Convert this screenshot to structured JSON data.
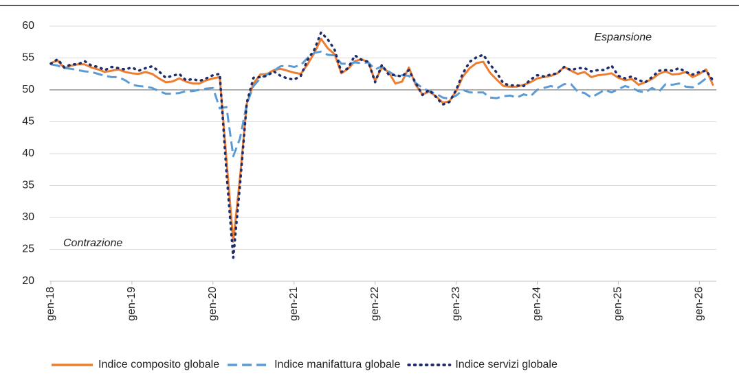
{
  "chart_data": {
    "type": "line",
    "annotations": [
      "Espansione",
      "Contrazione"
    ],
    "categories": [
      "gen-18",
      null,
      null,
      null,
      null,
      null,
      null,
      null,
      null,
      null,
      null,
      null,
      "gen-19",
      null,
      null,
      null,
      null,
      null,
      null,
      null,
      null,
      null,
      null,
      null,
      "gen-20",
      null,
      null,
      null,
      null,
      null,
      null,
      null,
      null,
      null,
      null,
      null,
      "gen-21",
      null,
      null,
      null,
      null,
      null,
      null,
      null,
      null,
      null,
      null,
      null,
      "gen-22",
      null,
      null,
      null,
      null,
      null,
      null,
      null,
      null,
      null,
      null,
      null,
      "gen-23",
      null,
      null,
      null,
      null,
      null,
      null,
      null,
      null,
      null,
      null,
      null,
      "gen-24",
      null,
      null,
      null,
      null,
      null,
      null,
      null,
      null,
      null,
      null,
      null,
      "gen-25",
      null,
      null,
      null,
      null,
      null,
      null,
      null,
      null,
      null,
      null,
      null,
      "gen-26",
      null,
      null
    ],
    "series": [
      {
        "name": "Indice composito globale",
        "color": "#ed7d31",
        "style": "solid",
        "values": [
          54.2,
          54.6,
          53.4,
          53.8,
          54.0,
          54.0,
          53.5,
          53.2,
          52.8,
          53.0,
          53.2,
          52.8,
          52.6,
          52.5,
          52.8,
          52.5,
          51.8,
          51.2,
          51.3,
          51.8,
          51.3,
          51.0,
          51.0,
          51.5,
          51.8,
          52.0,
          39.0,
          26.2,
          36.3,
          47.8,
          51.0,
          52.4,
          52.5,
          53.1,
          53.3,
          53.0,
          52.7,
          52.5,
          54.0,
          55.8,
          58.0,
          56.5,
          55.6,
          52.6,
          53.3,
          54.5,
          54.8,
          54.3,
          51.4,
          53.5,
          52.8,
          51.0,
          51.3,
          53.5,
          50.8,
          49.3,
          49.7,
          49.0,
          48.0,
          48.2,
          49.8,
          52.1,
          53.4,
          54.2,
          54.4,
          52.7,
          51.6,
          50.6,
          50.5,
          50.5,
          50.8,
          51.2,
          51.8,
          52.0,
          52.2,
          52.6,
          53.6,
          53.0,
          52.5,
          52.8,
          52.0,
          52.3,
          52.4,
          52.6,
          51.9,
          51.5,
          51.7,
          50.8,
          51.2,
          51.7,
          52.5,
          52.9,
          52.4,
          52.5,
          52.8,
          52.0,
          52.5,
          53.2,
          50.8
        ]
      },
      {
        "name": "Indice manifattura globale",
        "color": "#5b9bd5",
        "style": "dashed",
        "values": [
          54.0,
          53.8,
          53.4,
          53.3,
          53.1,
          52.9,
          52.8,
          52.5,
          52.2,
          52.0,
          52.0,
          51.5,
          50.8,
          50.6,
          50.5,
          50.3,
          49.8,
          49.4,
          49.4,
          49.5,
          49.8,
          49.8,
          50.0,
          50.2,
          50.3,
          47.1,
          47.3,
          39.6,
          42.4,
          47.8,
          50.6,
          51.8,
          52.4,
          53.0,
          53.7,
          53.8,
          53.6,
          53.9,
          55.0,
          55.8,
          56.0,
          55.5,
          55.4,
          54.1,
          54.1,
          54.3,
          54.2,
          54.3,
          53.2,
          53.7,
          52.9,
          52.2,
          52.3,
          52.2,
          51.1,
          50.3,
          49.8,
          49.4,
          48.8,
          48.6,
          49.1,
          50.0,
          49.6,
          49.6,
          49.6,
          48.8,
          48.7,
          49.0,
          49.1,
          48.8,
          49.3,
          49.0,
          50.0,
          50.3,
          50.6,
          50.3,
          50.9,
          50.9,
          49.7,
          49.5,
          48.8,
          49.4,
          50.0,
          49.6,
          50.1,
          50.6,
          50.3,
          49.8,
          49.6,
          50.3,
          49.7,
          50.9,
          50.8,
          51.0,
          50.5,
          50.4,
          51.0,
          51.8,
          51.6
        ]
      },
      {
        "name": "Indice servizi globale",
        "color": "#1f2d6b",
        "style": "dotted",
        "values": [
          54.1,
          54.8,
          53.5,
          54.0,
          54.0,
          54.5,
          53.8,
          53.6,
          53.1,
          53.6,
          53.4,
          53.2,
          53.5,
          53.0,
          53.4,
          53.7,
          52.9,
          51.9,
          52.2,
          52.5,
          51.5,
          51.7,
          51.4,
          51.8,
          52.3,
          52.5,
          37.0,
          23.7,
          35.1,
          48.0,
          51.9,
          52.0,
          52.2,
          52.9,
          52.2,
          51.8,
          51.6,
          52.2,
          54.7,
          56.3,
          59.0,
          57.9,
          56.3,
          52.8,
          53.4,
          55.4,
          54.7,
          54.4,
          51.2,
          53.9,
          52.4,
          52.3,
          52.1,
          53.1,
          51.1,
          49.2,
          50.0,
          48.9,
          47.7,
          48.1,
          50.0,
          52.6,
          54.4,
          55.1,
          55.5,
          54.0,
          52.7,
          51.0,
          50.7,
          50.7,
          50.6,
          51.6,
          52.3,
          52.1,
          52.4,
          52.6,
          53.6,
          53.1,
          53.4,
          53.4,
          52.9,
          53.1,
          53.1,
          53.8,
          52.2,
          51.8,
          52.1,
          51.5,
          51.2,
          52.0,
          53.0,
          53.1,
          53.0,
          53.4,
          52.8,
          52.4,
          52.8,
          53.0,
          51.5
        ]
      }
    ],
    "ylim": [
      20,
      60
    ],
    "yticks": [
      20,
      25,
      30,
      35,
      40,
      45,
      50,
      55,
      60
    ],
    "reference_line": 50,
    "grid": true,
    "legend": "bottom"
  }
}
